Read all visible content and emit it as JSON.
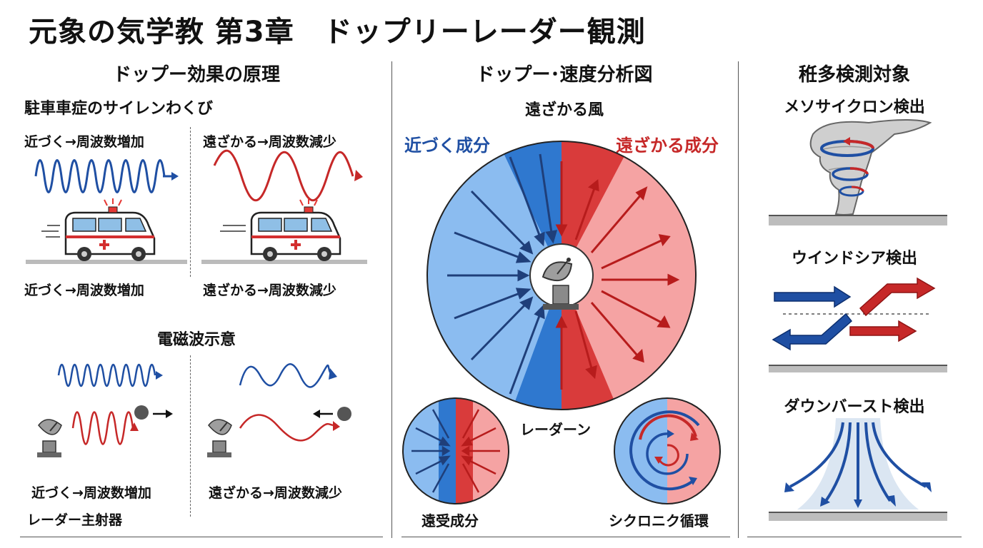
{
  "title": "元象の気学教 第3章　ドップリーレーダー観測",
  "left": {
    "heading": "ドップー効果の原理",
    "subheading": "駐車車症のサイレンわくび",
    "top_left_label": "近づく→周波数増加",
    "top_right_label": "遠ざかる→周波数減少",
    "bottom_left_label": "近づく→周波数増加",
    "bottom_right_label": "遠ざかる→周波数減少",
    "em_heading": "電磁波示意",
    "em_left_label": "近づく→周波数増加",
    "em_right_label": "遠ざかる→周波数減少",
    "radar_label": "レーダー主射器"
  },
  "middle": {
    "heading": "ドップー･速度分析図",
    "subheading": "遠ざかる風",
    "approach_label": "近づく成分",
    "recede_label": "遠ざかる成分",
    "radar_line_label": "レーダーン",
    "small_left_label": "遠受成分",
    "small_right_label": "シクロニク循環"
  },
  "right": {
    "heading": "秹多検測対象",
    "mesocyclone_label": "メソサイクロン検出",
    "windshear_label": "ウインドシア検出",
    "downburst_label": "ダウンバースト検出"
  },
  "colors": {
    "approach_blue": "#1f4fa3",
    "recede_red": "#c62828",
    "light_blue": "#8bbcf0",
    "light_red": "#f5a3a3"
  }
}
